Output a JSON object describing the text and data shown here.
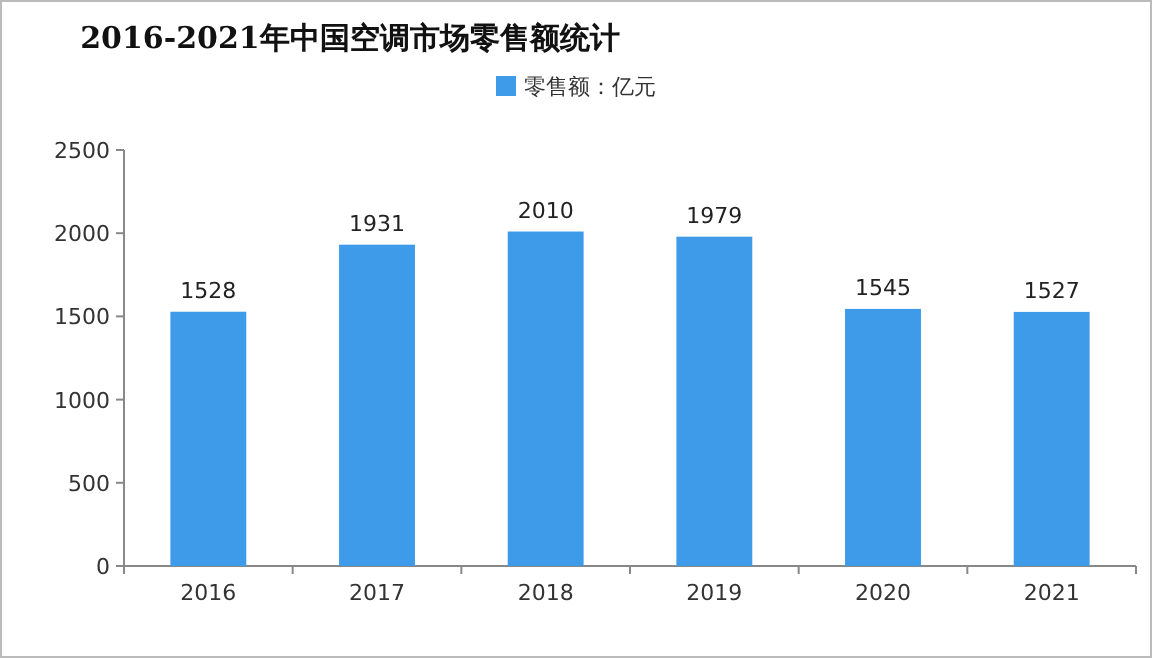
{
  "chart_data": {
    "type": "bar",
    "title": "2016-2021年中国空调市场零售额统计",
    "categories": [
      "2016",
      "2017",
      "2018",
      "2019",
      "2020",
      "2021"
    ],
    "series": [
      {
        "name": "零售额：亿元",
        "color": "#3d9be9",
        "values": [
          1528,
          1931,
          2010,
          1979,
          1545,
          1527
        ]
      }
    ],
    "ylim": [
      0,
      2500
    ],
    "yticks": [
      0,
      500,
      1000,
      1500,
      2000,
      2500
    ],
    "data_labels": true,
    "legend": "top"
  }
}
